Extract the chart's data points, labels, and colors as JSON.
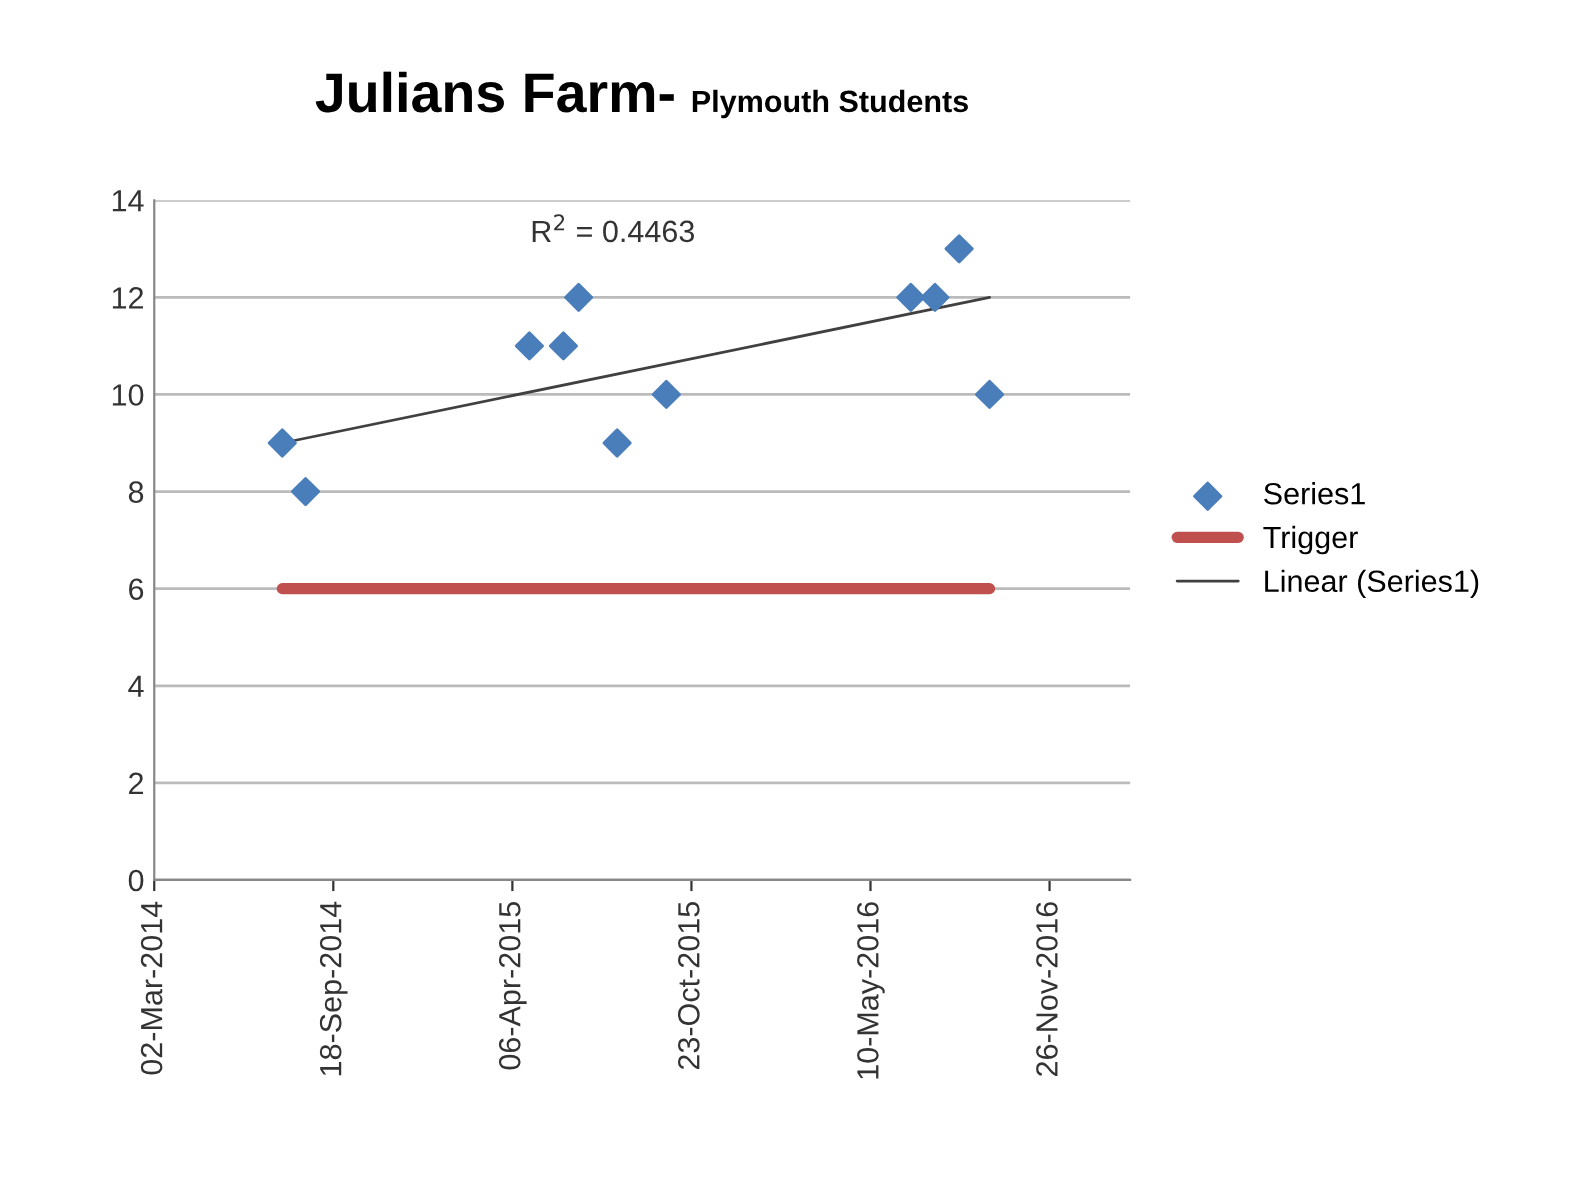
{
  "chart_data": {
    "type": "scatter",
    "title": "Julians Farm-",
    "subtitle": "Plymouth Students",
    "series": [
      {
        "name": "Series1",
        "color": "#4a7ebb",
        "marker": "diamond",
        "x": [
          "2014-07-23",
          "2014-08-18",
          "2015-04-25",
          "2015-06-02",
          "2015-06-19",
          "2015-08-01",
          "2015-09-25",
          "2016-06-24",
          "2016-07-21",
          "2016-08-17",
          "2016-09-20"
        ],
        "values": [
          9,
          8,
          11,
          11,
          12,
          9,
          10,
          12,
          12,
          13,
          10
        ]
      },
      {
        "name": "Trigger",
        "type": "line",
        "color": "#c0504d",
        "x": [
          "2014-07-23",
          "2016-09-20"
        ],
        "values": [
          6,
          6
        ]
      },
      {
        "name": "Linear (Series1)",
        "type": "line",
        "color": "#404040",
        "x": [
          "2014-07-23",
          "2016-09-20"
        ],
        "values": [
          9.0,
          12.0
        ]
      }
    ],
    "annotations": [
      "R$^{2}$ = 0.4463"
    ],
    "xlim": [
      "2014-03-02",
      "2017-02-24"
    ],
    "xticks": [
      {
        "value": "2014-03-02",
        "label": "02-Mar-2014"
      },
      {
        "value": "2014-09-18",
        "label": "18-Sep-2014"
      },
      {
        "value": "2015-04-06",
        "label": "06-Apr-2015"
      },
      {
        "value": "2015-10-23",
        "label": "23-Oct-2015"
      },
      {
        "value": "2016-05-10",
        "label": "10-May-2016"
      },
      {
        "value": "2016-11-26",
        "label": "26-Nov-2016"
      }
    ],
    "ylim": [
      0,
      14
    ],
    "yticks": [
      0,
      2,
      4,
      6,
      8,
      10,
      12,
      14
    ],
    "grid": "y",
    "legend": "right"
  }
}
